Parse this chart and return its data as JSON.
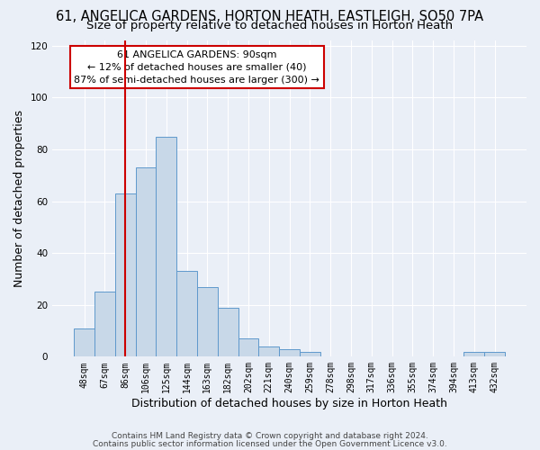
{
  "title_line1": "61, ANGELICA GARDENS, HORTON HEATH, EASTLEIGH, SO50 7PA",
  "title_line2": "Size of property relative to detached houses in Horton Heath",
  "bar_values": [
    11,
    25,
    63,
    73,
    85,
    33,
    27,
    19,
    7,
    4,
    3,
    2,
    0,
    0,
    0,
    0,
    0,
    0,
    0,
    2,
    2
  ],
  "bar_labels": [
    "48sqm",
    "67sqm",
    "86sqm",
    "106sqm",
    "125sqm",
    "144sqm",
    "163sqm",
    "182sqm",
    "202sqm",
    "221sqm",
    "240sqm",
    "259sqm",
    "278sqm",
    "298sqm",
    "317sqm",
    "336sqm",
    "355sqm",
    "374sqm",
    "394sqm",
    "413sqm",
    "432sqm"
  ],
  "bar_color": "#c8d8e8",
  "bar_edge_color": "#5f99cc",
  "vline_x": 2,
  "vline_color": "#cc0000",
  "annotation_text": "61 ANGELICA GARDENS: 90sqm\n← 12% of detached houses are smaller (40)\n87% of semi-detached houses are larger (300) →",
  "annotation_box_color": "#ffffff",
  "annotation_box_edge": "#cc0000",
  "ylabel": "Number of detached properties",
  "xlabel": "Distribution of detached houses by size in Horton Heath",
  "ylim": [
    0,
    122
  ],
  "yticks": [
    0,
    20,
    40,
    60,
    80,
    100,
    120
  ],
  "footnote_line1": "Contains HM Land Registry data © Crown copyright and database right 2024.",
  "footnote_line2": "Contains public sector information licensed under the Open Government Licence v3.0.",
  "bg_color": "#eaeff7",
  "grid_color": "#ffffff",
  "title_fontsize": 10.5,
  "subtitle_fontsize": 9.5,
  "tick_fontsize": 7,
  "label_fontsize": 9,
  "footnote_fontsize": 6.5
}
